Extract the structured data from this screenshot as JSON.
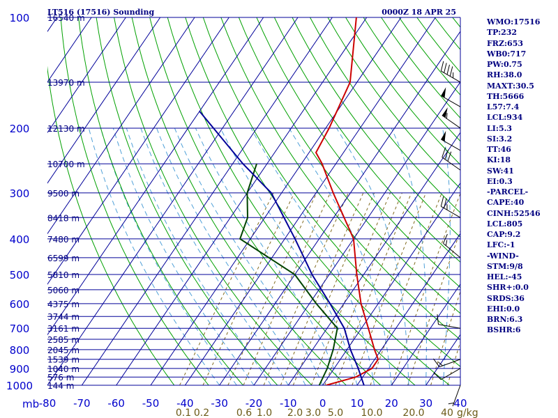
{
  "header": {
    "station_title": "LT516 (17516) Sounding",
    "time_label": "0000Z 18 APR 25"
  },
  "chart_data": {
    "type": "line",
    "diagram": "skew-t log-p",
    "pressure_axis": {
      "label": "mb",
      "ticks": [
        100,
        200,
        300,
        400,
        500,
        600,
        700,
        800,
        900,
        1000
      ],
      "range": [
        100,
        1000
      ],
      "scale": "log"
    },
    "temperature_axis": {
      "ticks": [
        -80,
        -70,
        -60,
        -50,
        -40,
        -30,
        -20,
        -10,
        0,
        10,
        20,
        30,
        40
      ],
      "range": [
        -80,
        40
      ]
    },
    "mixing_ratio_axis": {
      "unit": "g/kg",
      "ticks": [
        "0.1",
        "0.2",
        "0.6",
        "1.0",
        "2.0",
        "3.0",
        "5.0",
        "10.0",
        "20.0",
        "40"
      ]
    },
    "height_labels": [
      {
        "p": 100,
        "text": "16540 m"
      },
      {
        "p": 150,
        "text": "13970 m"
      },
      {
        "p": 200,
        "text": "12130 m"
      },
      {
        "p": 250,
        "text": "10700 m"
      },
      {
        "p": 300,
        "text": "9500 m"
      },
      {
        "p": 350,
        "text": "8418 m"
      },
      {
        "p": 400,
        "text": "7480 m"
      },
      {
        "p": 450,
        "text": "6599 m"
      },
      {
        "p": 500,
        "text": "5810 m"
      },
      {
        "p": 550,
        "text": "5060 m"
      },
      {
        "p": 600,
        "text": "4375 m"
      },
      {
        "p": 650,
        "text": "3744 m"
      },
      {
        "p": 700,
        "text": "3161 m"
      },
      {
        "p": 750,
        "text": "2585 m"
      },
      {
        "p": 800,
        "text": "2045 m"
      },
      {
        "p": 850,
        "text": "1539 m"
      },
      {
        "p": 900,
        "text": "1040 m"
      },
      {
        "p": 950,
        "text": "576 m"
      },
      {
        "p": 1000,
        "text": "144 m"
      }
    ],
    "series": [
      {
        "key": "temperature",
        "color": "#cc0000",
        "points": [
          {
            "p": 100,
            "t": -63
          },
          {
            "p": 150,
            "t": -52
          },
          {
            "p": 200,
            "t": -49
          },
          {
            "p": 233,
            "t": -48
          },
          {
            "p": 250,
            "t": -44
          },
          {
            "p": 300,
            "t": -35
          },
          {
            "p": 400,
            "t": -20
          },
          {
            "p": 500,
            "t": -12
          },
          {
            "p": 600,
            "t": -5
          },
          {
            "p": 700,
            "t": 2
          },
          {
            "p": 800,
            "t": 8
          },
          {
            "p": 850,
            "t": 11
          },
          {
            "p": 900,
            "t": 11
          },
          {
            "p": 950,
            "t": 8
          },
          {
            "p": 1000,
            "t": 1
          }
        ]
      },
      {
        "key": "dewpoint",
        "color": "#004400",
        "points": [
          {
            "p": 250,
            "t": -63
          },
          {
            "p": 300,
            "t": -60
          },
          {
            "p": 350,
            "t": -55
          },
          {
            "p": 400,
            "t": -53
          },
          {
            "p": 500,
            "t": -30
          },
          {
            "p": 600,
            "t": -18
          },
          {
            "p": 700,
            "t": -7
          },
          {
            "p": 800,
            "t": -4
          },
          {
            "p": 900,
            "t": -2
          },
          {
            "p": 1000,
            "t": -1
          }
        ]
      },
      {
        "key": "parcel",
        "color": "#000099",
        "points": [
          {
            "p": 180,
            "t": -90
          },
          {
            "p": 250,
            "t": -67
          },
          {
            "p": 300,
            "t": -53
          },
          {
            "p": 400,
            "t": -37
          },
          {
            "p": 500,
            "t": -25
          },
          {
            "p": 600,
            "t": -14
          },
          {
            "p": 700,
            "t": -5
          },
          {
            "p": 800,
            "t": 1
          },
          {
            "p": 900,
            "t": 7
          },
          {
            "p": 1000,
            "t": 12
          }
        ]
      }
    ],
    "wind_barbs": [
      {
        "p": 150,
        "dir": 300,
        "spd": 45
      },
      {
        "p": 175,
        "dir": 300,
        "spd": 50
      },
      {
        "p": 200,
        "dir": 305,
        "spd": 55
      },
      {
        "p": 230,
        "dir": 300,
        "spd": 50
      },
      {
        "p": 260,
        "dir": 305,
        "spd": 30
      },
      {
        "p": 350,
        "dir": 300,
        "spd": 25
      },
      {
        "p": 450,
        "dir": 310,
        "spd": 15
      },
      {
        "p": 700,
        "dir": 280,
        "spd": 10
      },
      {
        "p": 850,
        "dir": 250,
        "spd": 15
      },
      {
        "p": 900,
        "dir": 240,
        "spd": 10
      },
      {
        "p": 1000,
        "dir": 200,
        "spd": 5
      }
    ],
    "colors": {
      "isobars": "#000099",
      "isotherms": "#000099",
      "dry_adiabats": "#00a000",
      "moist_adiabats": "#4fa0d8",
      "mixing_ratio": "#806a1e",
      "barbs": "#000000"
    }
  },
  "indices": [
    "WMO:17516",
    "TP:232",
    "FRZ:653",
    "WB0:717",
    "PW:0.75",
    "RH:38.0",
    "MAXT:30.5",
    "TH:5666",
    "L57:7.4",
    "LCL:934",
    "LI:5.3",
    "SI:3.2",
    "TT:46",
    "KI:18",
    "SW:41",
    "EI:0.3",
    "-PARCEL-",
    "CAPE:40",
    "CINH:52546",
    "LCL:805",
    "CAP:9.2",
    "LFC:-1",
    "-WIND-",
    "STM:9/8",
    "HEL:-45",
    "SHR+:0.0",
    "SRDS:36",
    "EHI:0.0",
    "BRN:6.3",
    "BSHR:6"
  ]
}
